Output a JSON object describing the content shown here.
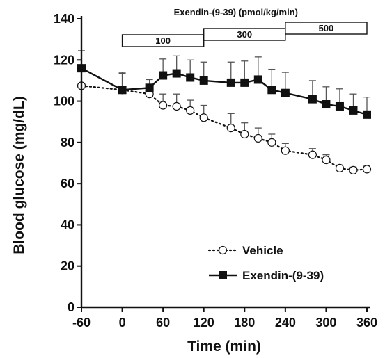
{
  "chart_data": {
    "type": "line",
    "xlabel": "Time (min)",
    "ylabel": "Blood glucose (mg/dL)",
    "xlim": [
      -60,
      360
    ],
    "ylim": [
      0,
      140
    ],
    "x_ticks": [
      "-60",
      "0",
      "60",
      "120",
      "180",
      "240",
      "300",
      "360"
    ],
    "x_tick_values": [
      -60,
      0,
      60,
      120,
      180,
      240,
      300,
      360
    ],
    "y_ticks": [
      "0",
      "20",
      "40",
      "60",
      "80",
      "100",
      "120",
      "140"
    ],
    "y_tick_values": [
      0,
      20,
      40,
      60,
      80,
      100,
      120,
      140
    ],
    "grid": false,
    "legend_position": "lower-right",
    "infusion_title": "Exendin-(9-39) (pmol/kg/min)",
    "infusion_doses": [
      {
        "label": "100",
        "start": 0,
        "end": 120
      },
      {
        "label": "300",
        "start": 120,
        "end": 240
      },
      {
        "label": "500",
        "start": 240,
        "end": 360
      }
    ],
    "series": [
      {
        "name": "Vehicle",
        "style": "dotted-open-circle",
        "color": "#111111",
        "x": [
          -60,
          0,
          40,
          60,
          80,
          100,
          120,
          160,
          180,
          200,
          220,
          240,
          280,
          300,
          320,
          340,
          360
        ],
        "y": [
          107.5,
          105.5,
          103.5,
          98,
          97.5,
          95.5,
          92,
          87,
          84,
          82,
          80,
          76,
          74,
          71.5,
          67.5,
          66.5,
          67
        ],
        "error": [
          0,
          8,
          3,
          5.5,
          6,
          5,
          6,
          7,
          5.5,
          5,
          4,
          3.5,
          3,
          2.5,
          1.5,
          1.5,
          1.5
        ]
      },
      {
        "name": "Exendin-(9-39)",
        "style": "solid-filled-square",
        "color": "#111111",
        "x": [
          -60,
          0,
          40,
          60,
          80,
          100,
          120,
          160,
          180,
          200,
          220,
          240,
          280,
          300,
          320,
          340,
          360
        ],
        "y": [
          116,
          105.5,
          106.5,
          112.5,
          113.5,
          111.5,
          110,
          109,
          109,
          110.5,
          105.5,
          104,
          101,
          98.5,
          97.5,
          95.5,
          93.5
        ],
        "error": [
          8.5,
          8.5,
          4,
          8,
          8.5,
          8.5,
          9,
          10,
          10.5,
          11,
          10,
          10,
          9,
          8.5,
          8.5,
          8,
          8.5
        ]
      }
    ]
  }
}
